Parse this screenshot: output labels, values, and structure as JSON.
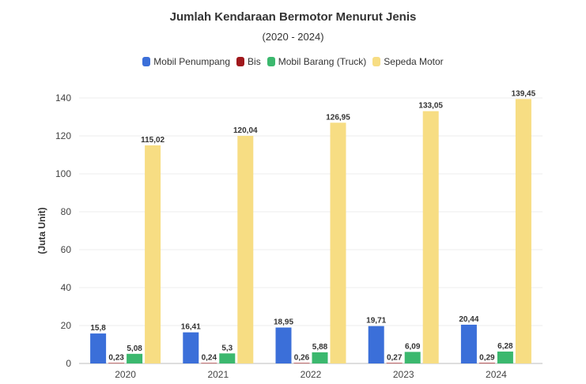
{
  "chart_data": {
    "type": "bar",
    "title": "Jumlah Kendaraan Bermotor Menurut Jenis",
    "subtitle": "(2020 - 2024)",
    "ylabel": "(Juta Unit)",
    "xlabel": "",
    "categories": [
      "2020",
      "2021",
      "2022",
      "2023",
      "2024"
    ],
    "ylim": [
      0,
      140
    ],
    "yticks": [
      0,
      20,
      40,
      60,
      80,
      100,
      120,
      140
    ],
    "grid": true,
    "legend_position": "top",
    "series": [
      {
        "name": "Mobil Penumpang",
        "color": "#3b6fd9",
        "values": [
          15.8,
          16.41,
          18.95,
          19.71,
          20.44
        ],
        "labels": [
          "15,8",
          "16,41",
          "18,95",
          "19,71",
          "20,44"
        ]
      },
      {
        "name": "Bis",
        "color": "#a0181c",
        "values": [
          0.23,
          0.24,
          0.26,
          0.27,
          0.29
        ],
        "labels": [
          "0,23",
          "0,24",
          "0,26",
          "0,27",
          "0,29"
        ]
      },
      {
        "name": "Mobil Barang (Truck)",
        "color": "#3bb86e",
        "values": [
          5.08,
          5.3,
          5.88,
          6.09,
          6.28
        ],
        "labels": [
          "5,08",
          "5,3",
          "5,88",
          "6,09",
          "6,28"
        ]
      },
      {
        "name": "Sepeda Motor",
        "color": "#f7dd83",
        "values": [
          115.02,
          120.04,
          126.95,
          133.05,
          139.45
        ],
        "labels": [
          "115,02",
          "120,04",
          "126,95",
          "133,05",
          "139,45"
        ]
      }
    ]
  }
}
